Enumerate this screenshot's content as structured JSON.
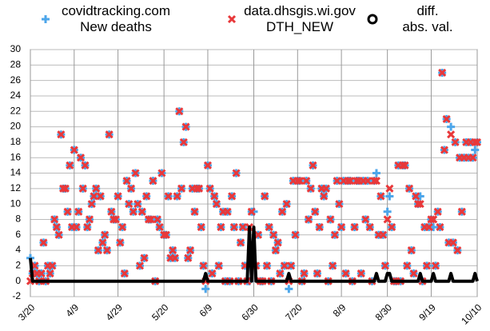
{
  "chart_data": {
    "type": "scatter",
    "categories": [
      "3/20",
      "3/21",
      "3/22",
      "3/23",
      "3/24",
      "3/25",
      "3/26",
      "3/27",
      "3/28",
      "3/29",
      "3/30",
      "3/31",
      "4/1",
      "4/2",
      "4/3",
      "4/4",
      "4/5",
      "4/6",
      "4/7",
      "4/8",
      "4/9",
      "4/10",
      "4/11",
      "4/12",
      "4/13",
      "4/14",
      "4/15",
      "4/16",
      "4/17",
      "4/18",
      "4/19",
      "4/20",
      "4/21",
      "4/22",
      "4/23",
      "4/24",
      "4/25",
      "4/26",
      "4/27",
      "4/28",
      "4/29",
      "4/30",
      "5/1",
      "5/2",
      "5/3",
      "5/4",
      "5/5",
      "5/6",
      "5/7",
      "5/8",
      "5/9",
      "5/10",
      "5/11",
      "5/12",
      "5/13",
      "5/14",
      "5/15",
      "5/16",
      "5/17",
      "5/18",
      "5/19",
      "5/20",
      "5/21",
      "5/22",
      "5/23",
      "5/24",
      "5/25",
      "5/26",
      "5/27",
      "5/28",
      "5/29",
      "5/30",
      "5/31",
      "6/1",
      "6/2",
      "6/3",
      "6/4",
      "6/5",
      "6/6",
      "6/7",
      "6/8",
      "6/9",
      "6/10",
      "6/11",
      "6/12",
      "6/13",
      "6/14",
      "6/15",
      "6/16",
      "6/17",
      "6/18",
      "6/19",
      "6/20",
      "6/21",
      "6/22",
      "6/23",
      "6/24",
      "6/25",
      "6/26",
      "6/27",
      "6/28",
      "6/29",
      "6/30",
      "7/1",
      "7/2",
      "7/3",
      "7/4",
      "7/5",
      "7/6",
      "7/7",
      "7/8",
      "7/9",
      "7/10",
      "7/11",
      "7/12",
      "7/13",
      "7/14",
      "7/15",
      "7/16",
      "7/17",
      "7/18",
      "7/19",
      "7/20",
      "7/21",
      "7/22",
      "7/23",
      "7/24",
      "7/25",
      "7/26",
      "7/27",
      "7/28",
      "7/29",
      "7/30",
      "7/31",
      "8/1",
      "8/2",
      "8/3",
      "8/4",
      "8/5",
      "8/6",
      "8/7",
      "8/8",
      "8/9",
      "8/10",
      "8/11",
      "8/12",
      "8/13",
      "8/14",
      "8/15",
      "8/16",
      "8/17",
      "8/18",
      "8/19",
      "8/20",
      "8/21",
      "8/22",
      "8/23",
      "8/24",
      "8/25",
      "8/26",
      "8/27",
      "8/28",
      "8/29",
      "8/30",
      "8/31",
      "9/1",
      "9/2",
      "9/3",
      "9/4",
      "9/5",
      "9/6",
      "9/7",
      "9/8",
      "9/9",
      "9/10",
      "9/11",
      "9/12",
      "9/13",
      "9/14",
      "9/15",
      "9/16",
      "9/17",
      "9/18",
      "9/19",
      "9/20",
      "9/21",
      "9/22",
      "9/23",
      "9/24",
      "9/25",
      "9/26",
      "9/27",
      "9/28",
      "9/29",
      "9/30",
      "10/1",
      "10/2",
      "10/3",
      "10/4",
      "10/5",
      "10/6",
      "10/7",
      "10/8",
      "10/9",
      "10/10"
    ],
    "xticks": [
      "3/20",
      "4/9",
      "4/29",
      "5/20",
      "6/9",
      "6/30",
      "7/20",
      "8/9",
      "8/30",
      "9/19",
      "10/10"
    ],
    "series": [
      {
        "name": "covidtracking.com\nNew deaths",
        "color": "#4da6ea",
        "marker": "plus",
        "values": [
          3,
          1,
          2,
          1,
          0,
          1,
          5,
          0,
          2,
          1,
          2,
          8,
          7,
          6,
          19,
          12,
          12,
          9,
          15,
          7,
          17,
          7,
          9,
          16,
          12,
          15,
          7,
          8,
          10,
          11,
          12,
          4,
          11,
          5,
          6,
          4,
          19,
          9,
          8,
          8,
          11,
          5,
          7,
          1,
          13,
          10,
          12,
          9,
          14,
          10,
          2,
          9,
          3,
          11,
          8,
          8,
          13,
          0,
          8,
          7,
          14,
          6,
          6,
          11,
          3,
          4,
          3,
          11,
          22,
          12,
          18,
          20,
          3,
          4,
          12,
          9,
          12,
          12,
          7,
          2,
          -1,
          15,
          12,
          1,
          11,
          10,
          2,
          7,
          9,
          0,
          9,
          0,
          11,
          7,
          14,
          0,
          5,
          7,
          2,
          0,
          0,
          9,
          9,
          2,
          6,
          0,
          0,
          11,
          2,
          7,
          0,
          6,
          4,
          5,
          1,
          9,
          2,
          10,
          -1,
          2,
          13,
          6,
          13,
          13,
          0,
          1,
          13,
          8,
          12,
          15,
          9,
          1,
          7,
          12,
          11,
          12,
          0,
          8,
          2,
          6,
          13,
          10,
          7,
          13,
          1,
          13,
          13,
          0,
          7,
          13,
          13,
          1,
          13,
          8,
          13,
          7,
          0,
          13,
          14,
          6,
          11,
          6,
          2,
          9,
          11,
          7,
          0,
          0,
          15,
          0,
          15,
          15,
          2,
          12,
          4,
          1,
          11,
          10,
          11,
          0,
          7,
          2,
          7,
          8,
          7,
          2,
          9,
          7,
          27,
          17,
          21,
          5,
          20,
          5,
          18,
          4,
          16,
          9,
          16,
          18,
          16,
          18,
          16,
          17,
          18
        ]
      },
      {
        "name": "data.dhsgis.wi.gov\nDTH_NEW",
        "color": "#e8383a",
        "marker": "cross",
        "values": [
          0,
          1,
          2,
          1,
          0,
          1,
          5,
          0,
          2,
          1,
          2,
          8,
          7,
          6,
          19,
          12,
          12,
          9,
          15,
          7,
          17,
          7,
          9,
          16,
          12,
          15,
          7,
          8,
          10,
          11,
          12,
          4,
          11,
          5,
          6,
          4,
          19,
          9,
          8,
          8,
          11,
          5,
          7,
          1,
          13,
          10,
          12,
          9,
          14,
          10,
          2,
          9,
          3,
          11,
          8,
          8,
          13,
          0,
          8,
          7,
          14,
          6,
          6,
          11,
          3,
          4,
          3,
          11,
          22,
          12,
          18,
          20,
          3,
          4,
          12,
          9,
          12,
          12,
          7,
          2,
          0,
          15,
          12,
          1,
          11,
          10,
          2,
          7,
          9,
          0,
          9,
          0,
          11,
          7,
          14,
          0,
          5,
          7,
          2,
          0,
          7,
          9,
          2,
          2,
          6,
          0,
          0,
          11,
          2,
          7,
          0,
          6,
          4,
          5,
          1,
          9,
          2,
          10,
          0,
          2,
          13,
          6,
          13,
          13,
          0,
          1,
          13,
          8,
          12,
          15,
          9,
          1,
          7,
          12,
          11,
          12,
          0,
          8,
          2,
          6,
          13,
          10,
          7,
          13,
          1,
          13,
          13,
          0,
          7,
          13,
          13,
          1,
          13,
          8,
          13,
          7,
          0,
          13,
          13,
          6,
          11,
          6,
          2,
          8,
          12,
          7,
          0,
          0,
          15,
          0,
          15,
          15,
          2,
          12,
          4,
          1,
          11,
          10,
          10,
          0,
          7,
          2,
          7,
          8,
          8,
          2,
          9,
          7,
          27,
          17,
          21,
          5,
          19,
          5,
          18,
          4,
          16,
          9,
          16,
          18,
          16,
          18,
          16,
          18,
          18
        ]
      },
      {
        "name": "diff.\nabs. val.",
        "color": "#000000",
        "marker": "line",
        "values": [
          3,
          0,
          0,
          0,
          0,
          0,
          0,
          0,
          0,
          0,
          0,
          0,
          0,
          0,
          0,
          0,
          0,
          0,
          0,
          0,
          0,
          0,
          0,
          0,
          0,
          0,
          0,
          0,
          0,
          0,
          0,
          0,
          0,
          0,
          0,
          0,
          0,
          0,
          0,
          0,
          0,
          0,
          0,
          0,
          0,
          0,
          0,
          0,
          0,
          0,
          0,
          0,
          0,
          0,
          0,
          0,
          0,
          0,
          0,
          0,
          0,
          0,
          0,
          0,
          0,
          0,
          0,
          0,
          0,
          0,
          0,
          0,
          0,
          0,
          0,
          0,
          0,
          0,
          0,
          0,
          1,
          0,
          0,
          0,
          0,
          0,
          0,
          0,
          0,
          0,
          0,
          0,
          0,
          0,
          0,
          0,
          0,
          0,
          0,
          0,
          7,
          0,
          7,
          0,
          0,
          0,
          0,
          0,
          0,
          0,
          0,
          0,
          0,
          0,
          0,
          0,
          0,
          0,
          1,
          0,
          0,
          0,
          0,
          0,
          0,
          0,
          0,
          0,
          0,
          0,
          0,
          0,
          0,
          0,
          0,
          0,
          0,
          0,
          0,
          0,
          0,
          0,
          0,
          0,
          0,
          0,
          0,
          0,
          0,
          0,
          0,
          0,
          0,
          0,
          0,
          0,
          0,
          0,
          1,
          0,
          0,
          0,
          0,
          1,
          1,
          0,
          0,
          0,
          0,
          0,
          0,
          0,
          0,
          0,
          0,
          0,
          0,
          0,
          1,
          0,
          0,
          0,
          0,
          0,
          1,
          0,
          0,
          0,
          0,
          0,
          0,
          0,
          1,
          0,
          0,
          0,
          0,
          0,
          0,
          0,
          0,
          0,
          0,
          1,
          0
        ]
      }
    ],
    "ylim": [
      -2,
      30
    ],
    "yticks": [
      -2,
      0,
      2,
      4,
      6,
      8,
      10,
      12,
      14,
      16,
      18,
      20,
      22,
      24,
      26,
      28,
      30
    ],
    "grid": true,
    "legend": "top"
  }
}
